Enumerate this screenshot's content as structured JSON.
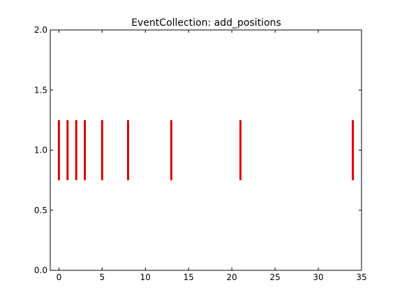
{
  "chart_data": {
    "type": "event",
    "title": "EventCollection: add_positions",
    "xlabel": "",
    "ylabel": "",
    "xlim": [
      -1,
      35
    ],
    "ylim": [
      0,
      2
    ],
    "x_ticks": [
      0,
      5,
      10,
      15,
      20,
      25,
      30,
      35
    ],
    "y_ticks": [
      0.0,
      0.5,
      1.0,
      1.5,
      2.0
    ],
    "x_tick_labels": [
      "0",
      "5",
      "10",
      "15",
      "20",
      "25",
      "30",
      "35"
    ],
    "y_tick_labels": [
      "0.0",
      "0.5",
      "1.0",
      "1.5",
      "2.0"
    ],
    "grid": false,
    "series": [
      {
        "positions": [
          0,
          1,
          2,
          3,
          5,
          8,
          13,
          21,
          34
        ],
        "line_offset": 1.0,
        "line_length": 0.5,
        "color": "#dd0000"
      }
    ]
  }
}
